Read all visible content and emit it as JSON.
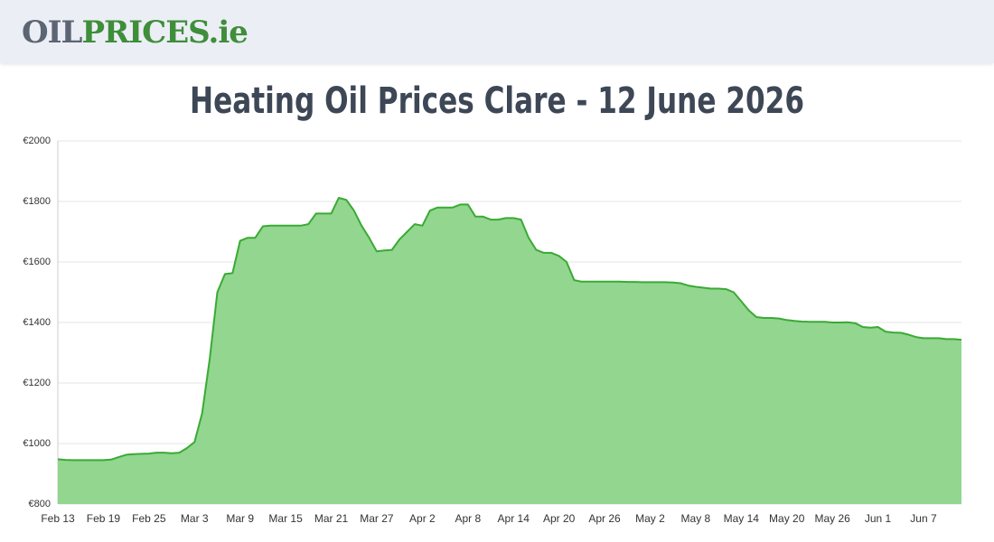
{
  "header": {
    "logo": [
      "OIL",
      "PRICES.ie"
    ]
  },
  "chart_data": {
    "type": "area",
    "title": "Heating Oil Prices Clare - 12 June 2026",
    "categories": [
      "Feb 13",
      null,
      null,
      null,
      null,
      null,
      "Feb 19",
      null,
      null,
      null,
      null,
      null,
      "Feb 25",
      null,
      null,
      null,
      null,
      null,
      "Mar 3",
      null,
      null,
      null,
      null,
      null,
      "Mar 9",
      null,
      null,
      null,
      null,
      null,
      "Mar 15",
      null,
      null,
      null,
      null,
      null,
      "Mar 21",
      null,
      null,
      null,
      null,
      null,
      "Mar 27",
      null,
      null,
      null,
      null,
      null,
      "Apr 2",
      null,
      null,
      null,
      null,
      null,
      "Apr 8",
      null,
      null,
      null,
      null,
      null,
      "Apr 14",
      null,
      null,
      null,
      null,
      null,
      "Apr 20",
      null,
      null,
      null,
      null,
      null,
      "Apr 26",
      null,
      null,
      null,
      null,
      null,
      "May 2",
      null,
      null,
      null,
      null,
      null,
      "May 8",
      null,
      null,
      null,
      null,
      null,
      "May 14",
      null,
      null,
      null,
      null,
      null,
      "May 20",
      null,
      null,
      null,
      null,
      null,
      "May 26",
      null,
      null,
      null,
      null,
      null,
      "Jun 1",
      null,
      null,
      null,
      null,
      null,
      "Jun 7",
      null,
      null,
      null,
      null,
      null
    ],
    "values": [
      948,
      946,
      945,
      945,
      945,
      945,
      945,
      947,
      955,
      963,
      965,
      966,
      967,
      970,
      970,
      968,
      970,
      985,
      1005,
      1100,
      1280,
      1500,
      1560,
      1563,
      1670,
      1680,
      1680,
      1718,
      1720,
      1720,
      1720,
      1720,
      1720,
      1725,
      1760,
      1760,
      1760,
      1812,
      1805,
      1770,
      1720,
      1680,
      1635,
      1638,
      1640,
      1675,
      1700,
      1725,
      1720,
      1770,
      1780,
      1780,
      1780,
      1790,
      1790,
      1750,
      1750,
      1740,
      1740,
      1745,
      1745,
      1740,
      1680,
      1640,
      1630,
      1630,
      1620,
      1600,
      1540,
      1535,
      1535,
      1535,
      1535,
      1535,
      1535,
      1534,
      1534,
      1533,
      1533,
      1533,
      1533,
      1532,
      1530,
      1522,
      1518,
      1515,
      1512,
      1512,
      1510,
      1500,
      1470,
      1440,
      1418,
      1415,
      1415,
      1413,
      1408,
      1405,
      1403,
      1402,
      1402,
      1402,
      1400,
      1400,
      1401,
      1398,
      1385,
      1383,
      1385,
      1370,
      1367,
      1366,
      1360,
      1352,
      1348,
      1348,
      1348,
      1345,
      1345,
      1343
    ],
    "color": "#3aaa35",
    "fill": "#92d68f",
    "ylim": [
      800,
      2000
    ],
    "yticks": [
      {
        "value": 800,
        "label": "€800"
      },
      {
        "value": 1000,
        "label": "€1000"
      },
      {
        "value": 1200,
        "label": "€1200"
      },
      {
        "value": 1400,
        "label": "€1400"
      },
      {
        "value": 1600,
        "label": "€1600"
      },
      {
        "value": 1800,
        "label": "€1800"
      },
      {
        "value": 2000,
        "label": "€2000"
      }
    ],
    "grid": true
  }
}
